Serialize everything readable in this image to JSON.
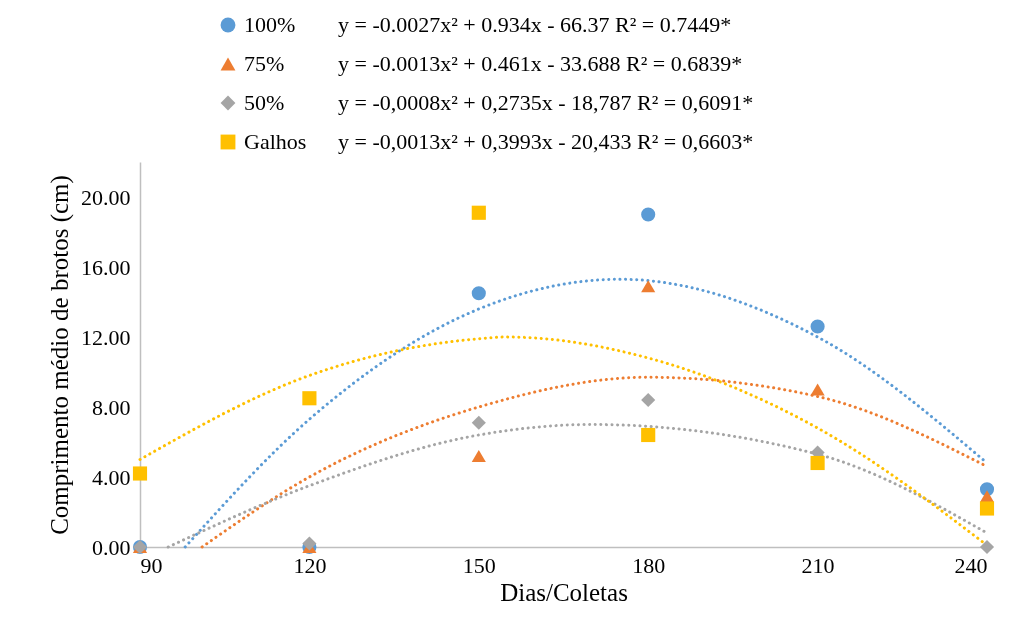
{
  "chart_data": {
    "type": "scatter",
    "xlabel": "Dias/Coletas",
    "ylabel": "Comprimento médio de brotos (cm)",
    "x": [
      90,
      120,
      150,
      180,
      210,
      240
    ],
    "xlim": [
      90,
      240
    ],
    "xticks": [
      90,
      120,
      150,
      180,
      210,
      240
    ],
    "ylim": [
      0,
      22
    ],
    "yticks": [
      {
        "value": 0,
        "label": "0.00"
      },
      {
        "value": 4,
        "label": "4.00"
      },
      {
        "value": 8,
        "label": "8.00"
      },
      {
        "value": 12,
        "label": "12.00"
      },
      {
        "value": 16,
        "label": "16.00"
      },
      {
        "value": 20,
        "label": "20.00"
      }
    ],
    "grid": false,
    "legend": "top",
    "annotations": [
      "y = -0.0027x² + 0.934x - 66.37 R² = 0.7449*",
      "y = -0.0013x² + 0.461x - 33.688 R² = 0.6839*",
      "y = -0,0008x² + 0,2735x - 18,787 R² = 0,6091*",
      "y = -0,0013x² + 0,3993x - 20,433 R² = 0,6603*"
    ],
    "series": [
      {
        "name": "100%",
        "type": "scatter",
        "marker": "circle",
        "color": "#5b9bd5",
        "values": [
          0,
          0,
          14.5,
          19.0,
          12.6,
          3.3
        ]
      },
      {
        "name": "75%",
        "type": "scatter",
        "marker": "triangle",
        "color": "#ed7d31",
        "values": [
          0,
          0,
          5.2,
          14.9,
          9.0,
          2.9
        ]
      },
      {
        "name": "50%",
        "type": "scatter",
        "marker": "diamond",
        "color": "#a5a5a5",
        "values": [
          0,
          0.2,
          7.1,
          8.4,
          5.4,
          0
        ]
      },
      {
        "name": "Galhos",
        "type": "scatter",
        "marker": "square",
        "color": "#ffc000",
        "values": [
          4.2,
          8.5,
          19.1,
          6.4,
          4.8,
          2.2
        ]
      },
      {
        "type": "line",
        "line_style": "dotted",
        "color": "#5b9bd5",
        "x": [
          98,
          120,
          150,
          175,
          210,
          240
        ],
        "values": [
          0,
          7.3,
          13.6,
          15.3,
          12.0,
          4.8
        ]
      },
      {
        "type": "line",
        "line_style": "dotted",
        "color": "#ed7d31",
        "x": [
          101,
          120,
          150,
          180,
          210,
          240
        ],
        "values": [
          0,
          4.0,
          8.0,
          9.7,
          8.6,
          4.6
        ]
      },
      {
        "type": "line",
        "line_style": "dotted",
        "color": "#a5a5a5",
        "x": [
          95,
          120,
          150,
          170,
          210,
          240
        ],
        "values": [
          0,
          3.5,
          6.4,
          7.0,
          5.3,
          0.8
        ]
      },
      {
        "type": "line",
        "line_style": "dotted",
        "color": "#ffc000",
        "x": [
          90,
          120,
          150,
          155,
          180,
          210,
          240
        ],
        "values": [
          5.0,
          9.8,
          11.9,
          12.0,
          10.8,
          6.8,
          0.1
        ]
      }
    ]
  }
}
